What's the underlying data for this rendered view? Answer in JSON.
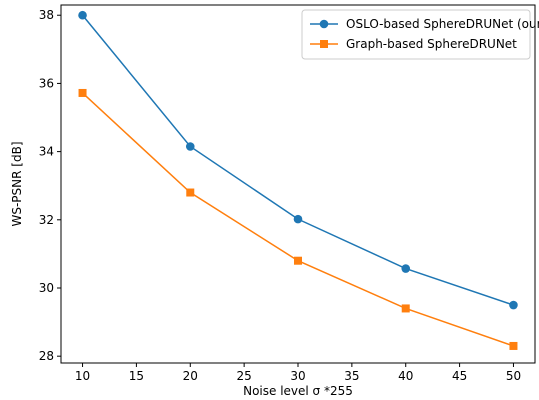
{
  "chart_data": {
    "type": "line",
    "title": "",
    "xlabel": "Noise level σ *255",
    "ylabel": "WS-PSNR [dB]",
    "xlim": [
      8.0,
      52.0
    ],
    "ylim": [
      27.8,
      38.3
    ],
    "xticks": [
      10,
      15,
      20,
      25,
      30,
      35,
      40,
      45,
      50
    ],
    "yticks": [
      28,
      30,
      32,
      34,
      36,
      38
    ],
    "grid": false,
    "legend_position": "top-right",
    "series": [
      {
        "name": "OSLO-based SphereDRUNet (ours)",
        "color": "#1f77b4",
        "marker": "circle",
        "x": [
          10,
          20,
          30,
          40,
          50
        ],
        "y": [
          38.0,
          34.15,
          32.02,
          30.57,
          29.5
        ]
      },
      {
        "name": "Graph-based SphereDRUNet",
        "color": "#ff7f0e",
        "marker": "square",
        "x": [
          10,
          20,
          30,
          40,
          50
        ],
        "y": [
          35.72,
          32.8,
          30.8,
          29.4,
          28.3
        ]
      }
    ]
  }
}
